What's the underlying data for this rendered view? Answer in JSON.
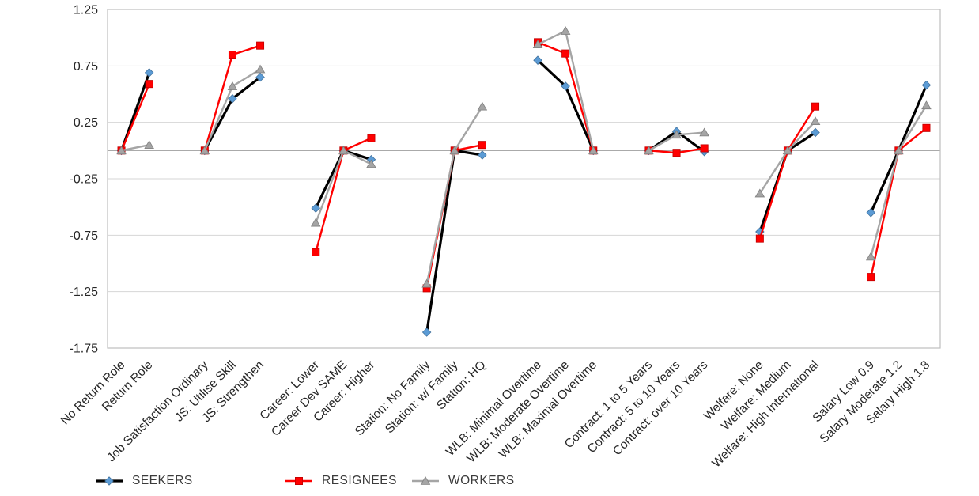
{
  "chart_data": {
    "type": "line",
    "title": "",
    "xlabel": "",
    "ylabel": "",
    "ylim": [
      -1.75,
      1.25
    ],
    "y_ticks": [
      "1.25",
      "0.75",
      "0.25",
      "-0.25",
      "-0.75",
      "-1.25",
      "-1.75"
    ],
    "y_tick_values": [
      1.25,
      0.75,
      0.25,
      -0.25,
      -0.75,
      -1.25,
      -1.75
    ],
    "grid": true,
    "legend_position": "bottom",
    "categories": [
      "No Return Role",
      "Return Role",
      "Job Satisfaction Ordinary",
      "JS: Utilise Skill",
      "JS: Strengthen",
      "Career: Lower",
      "Career Dev SAME",
      "Career: Higher",
      "Station: No Family",
      "Station: w/ Family",
      "Station: HQ",
      "WLB: Minimal Overtime",
      "WLB: Moderate Overtime",
      "WLB: Maximal Overtime",
      "Contract: 1 to 5 Years",
      "Contract: 5 to 10 Years",
      "Contract: over 10 Years",
      "Welfare: None",
      "Welfare: Medium",
      "Welfare: High International",
      "Salary Low 0.9",
      "Salary Moderate 1.2",
      "Salary High 1.8"
    ],
    "group_sizes": [
      2,
      3,
      3,
      3,
      3,
      3,
      3,
      3
    ],
    "series": [
      {
        "name": "SEEKERS",
        "marker_shape": "diamond",
        "marker_color": "#5B9BD5",
        "marker_edge_color": "#41719C",
        "line_color": "#000000",
        "line_width": 3.2,
        "values": [
          0,
          0.69,
          0,
          0.46,
          0.65,
          -0.51,
          0,
          -0.08,
          -1.61,
          0,
          -0.04,
          0.8,
          0.57,
          0,
          0,
          0.17,
          -0.01,
          -0.72,
          0,
          0.16,
          -0.55,
          0,
          0.58
        ]
      },
      {
        "name": "RESIGNEES",
        "marker_shape": "square",
        "marker_color": "#FF0000",
        "marker_edge_color": "#C00000",
        "line_color": "#FF0000",
        "line_width": 2.4,
        "values": [
          0,
          0.59,
          0,
          0.85,
          0.93,
          -0.9,
          0,
          0.11,
          -1.22,
          0,
          0.05,
          0.96,
          0.86,
          0,
          0,
          -0.02,
          0.02,
          -0.78,
          0,
          0.39,
          -1.12,
          0,
          0.2
        ]
      },
      {
        "name": "WORKERS",
        "marker_shape": "triangle",
        "marker_color": "#A5A5A5",
        "marker_edge_color": "#7F7F7F",
        "line_color": "#A5A5A5",
        "line_width": 2.4,
        "values": [
          0,
          0.05,
          0,
          0.57,
          0.72,
          -0.64,
          0,
          -0.12,
          -1.18,
          0,
          0.39,
          0.94,
          1.06,
          0,
          0,
          0.14,
          0.16,
          -0.38,
          0,
          0.26,
          -0.94,
          0,
          0.4
        ]
      }
    ],
    "axis_style": {
      "grid_color": "#D6D6D6",
      "zero_axis_color": "#9E9E9E",
      "border_color": "#BFBFBF",
      "text_color": "#262626"
    }
  }
}
